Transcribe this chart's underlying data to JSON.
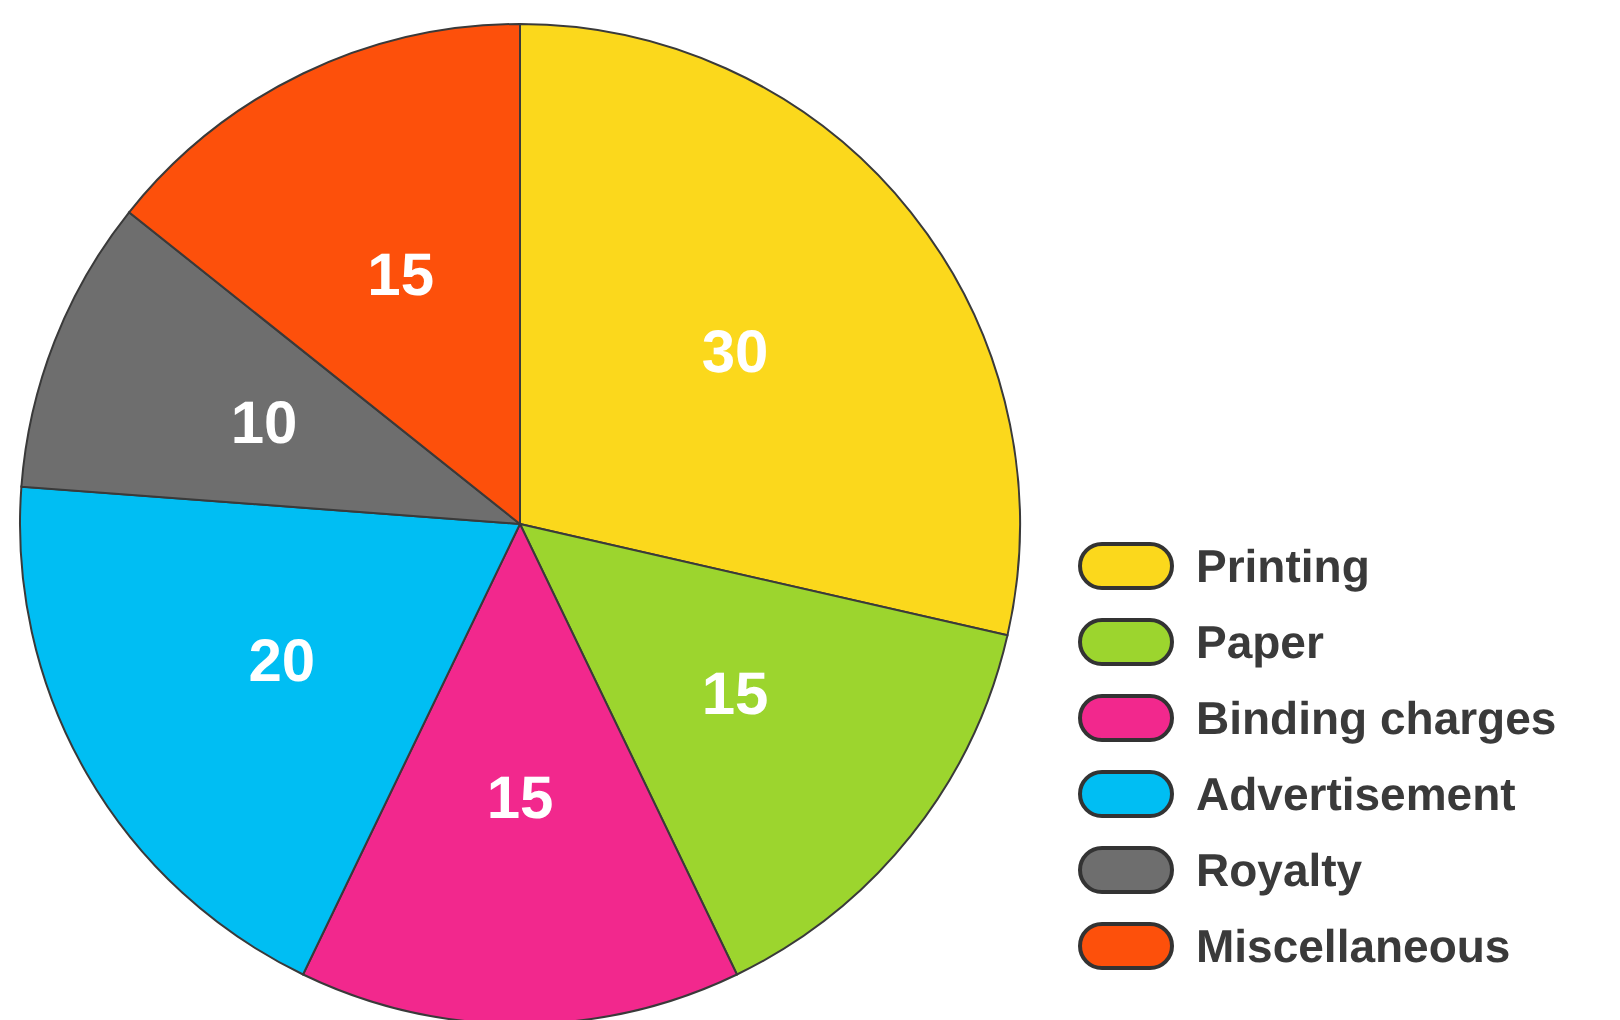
{
  "chart_data": {
    "type": "pie",
    "categories": [
      "Printing",
      "Paper",
      "Binding charges",
      "Advertisement",
      "Royalty",
      "Miscellaneous"
    ],
    "values": [
      30,
      15,
      15,
      20,
      10,
      15
    ],
    "colors": [
      "#fbd81c",
      "#9cd52e",
      "#f2288d",
      "#00bef3",
      "#6e6e6e",
      "#fd500b"
    ],
    "data_labels": true,
    "legend": "bottom right"
  }
}
